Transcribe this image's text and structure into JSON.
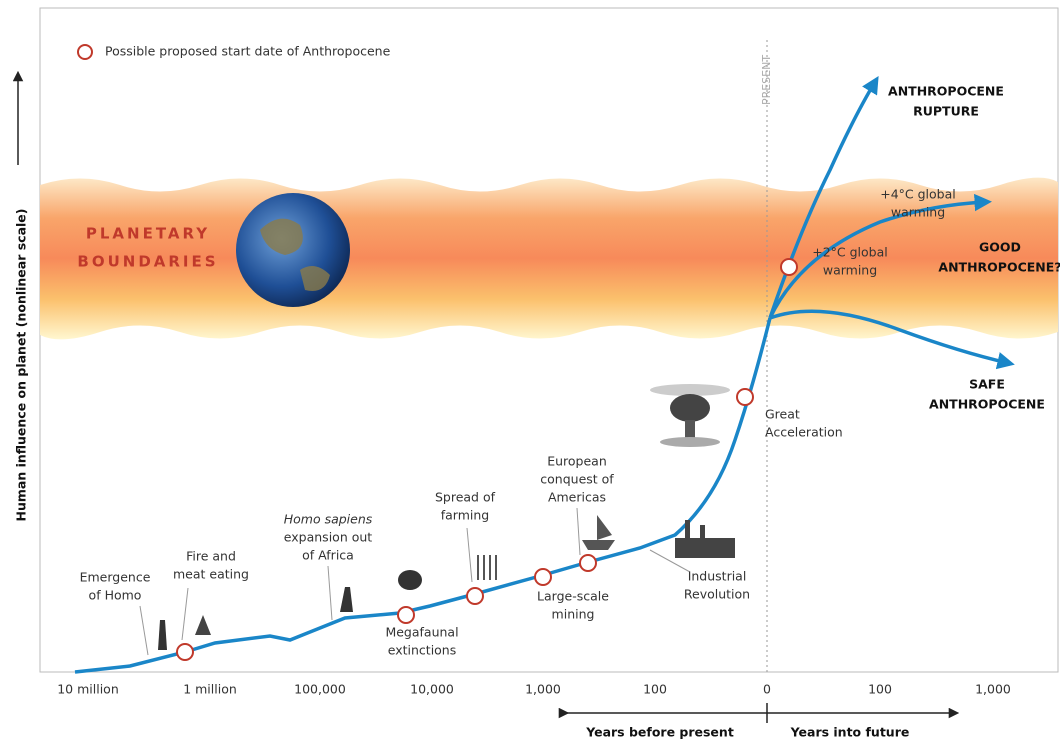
{
  "legend": "Possible proposed start date of Anthropocene",
  "y_axis_label": "Human influence on planet (nonlinear scale)",
  "x_ticks": [
    "10 million",
    "1 million",
    "100,000",
    "10,000",
    "1,000",
    "100",
    "0",
    "100",
    "1,000"
  ],
  "present_label": "PRESENT",
  "band_label": [
    "PLANETARY",
    "BOUNDARIES"
  ],
  "annotations": [
    {
      "lines": [
        "Emergence",
        "of Homo"
      ]
    },
    {
      "lines": [
        "Fire and",
        "meat eating"
      ]
    },
    {
      "lines": [
        "Homo sapiens",
        "expansion out",
        "of Africa"
      ]
    },
    {
      "lines": [
        "Megafaunal",
        "extinctions"
      ]
    },
    {
      "lines": [
        "Spread of",
        "farming"
      ]
    },
    {
      "lines": [
        "Large-scale",
        "mining"
      ]
    },
    {
      "lines": [
        "European",
        "conquest of",
        "Americas"
      ]
    },
    {
      "lines": [
        "Industrial",
        "Revolution"
      ]
    },
    {
      "lines": [
        "Great",
        "Acceleration"
      ]
    },
    {
      "lines": [
        "+2°C global",
        "warming"
      ]
    },
    {
      "lines": [
        "+4°C global",
        "warming"
      ]
    }
  ],
  "scenarios": [
    {
      "lines": [
        "ANTHROPOCENE",
        "RUPTURE"
      ]
    },
    {
      "lines": [
        "GOOD",
        "ANTHROPOCENE?"
      ]
    },
    {
      "lines": [
        "SAFE",
        "ANTHROPOCENE"
      ]
    }
  ],
  "x_axis_labels": [
    "Years before present",
    "Years into future"
  ]
}
